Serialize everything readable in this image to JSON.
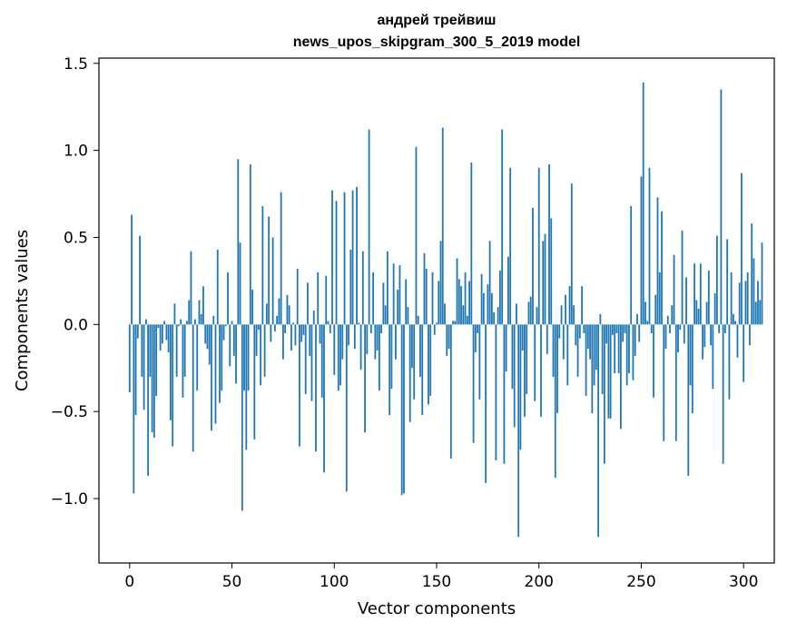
{
  "chart_data": {
    "type": "bar",
    "title": "андрей трейвиш",
    "subtitle": "news_upos_skipgram_300_5_2019 model",
    "xlabel": "Vector components",
    "ylabel": "Components values",
    "xlim": [
      -15,
      315
    ],
    "ylim": [
      -1.37,
      1.53
    ],
    "x_ticks": [
      0,
      50,
      100,
      150,
      200,
      250,
      300
    ],
    "x_tick_labels": [
      "0",
      "50",
      "100",
      "150",
      "200",
      "250",
      "300"
    ],
    "y_ticks": [
      -1.0,
      -0.5,
      0.0,
      0.5,
      1.0,
      1.5
    ],
    "y_tick_labels": [
      "−1.0",
      "−0.5",
      "0.0",
      "0.5",
      "1.0",
      "1.5"
    ],
    "bar_color": "#1f77b4",
    "grid": false,
    "x": "0..299",
    "values": [
      -0.39,
      0.63,
      -0.97,
      -0.52,
      -0.08,
      0.51,
      -0.3,
      -0.49,
      0.03,
      -0.87,
      -0.3,
      -0.62,
      -0.65,
      -0.41,
      -0.02,
      -0.15,
      -0.11,
      0.02,
      -0.09,
      -0.16,
      -0.55,
      -0.7,
      0.12,
      -0.3,
      -0.01,
      0.03,
      -0.42,
      -0.3,
      0.02,
      0.14,
      0.42,
      -0.73,
      0.03,
      -0.38,
      0.14,
      0.06,
      0.22,
      -0.11,
      -0.14,
      -0.23,
      -0.61,
      0.05,
      -0.57,
      0.43,
      -0.45,
      -0.38,
      -0.09,
      -0.01,
      0.3,
      -0.24,
      0.02,
      -0.18,
      -0.34,
      0.95,
      0.47,
      -1.07,
      -0.38,
      -0.72,
      -0.38,
      0.92,
      0.2,
      -0.66,
      -0.18,
      -0.03,
      -0.35,
      0.68,
      -0.3,
      0.12,
      0.62,
      -0.1,
      0.5,
      -0.04,
      0.05,
      0.15,
      0.76,
      -0.2,
      -0.05,
      0.17,
      0.11,
      -0.15,
      0.01,
      -0.12,
      0.32,
      -0.7,
      -0.1,
      -0.06,
      -0.4,
      0.24,
      -0.18,
      -0.44,
      0.08,
      -0.73,
      0.3,
      -0.11,
      -0.42,
      -0.85,
      0.28,
      0.02,
      -0.05,
      0.77,
      -0.29,
      0.71,
      -0.38,
      -0.35,
      -0.2,
      0.76,
      -0.96,
      -0.12,
      0.43,
      0.77,
      -0.14,
      0.79,
      0.01,
      -0.26,
      0.42,
      -0.62,
      -0.17,
      1.12,
      -0.05,
      0.3,
      -0.2,
      -0.15,
      -0.38,
      -0.05,
      0.24,
      0.11,
      0.42,
      -0.52,
      -0.37,
      0.35,
      -0.2,
      0.2,
      0.34,
      -0.98,
      -0.97,
      0.26,
      0.1,
      -0.56,
      -0.25,
      -0.43,
      1.02,
      0.05,
      -0.3,
      -0.52,
      0.41,
      0.32,
      -0.46,
      -0.41,
      0.3,
      -0.06,
      0.01,
      0.25,
      0.48,
      1.13,
      0.12,
      -0.18,
      -0.14,
      -0.77,
      0.02,
      0.02,
      0.38,
      0.26,
      0.22,
      0.11,
      0.3,
      0.05,
      0.25,
      0.93,
      -0.68,
      -0.16,
      -0.05,
      -0.43,
      0.29,
      0.18,
      -0.91,
      0.23,
      0.48,
      0.18,
      0.07,
      -0.78,
      0.1,
      0.31,
      1.12,
      -0.8,
      -0.27,
      0.39,
      0.9,
      -0.37,
      -0.59,
      0.12,
      -1.22,
      -0.72,
      -0.15,
      -0.53,
      -0.4,
      0.13,
      0.16,
      0.67,
      -0.44,
      0.1,
      0.9,
      -0.53,
      0.48,
      0.52,
      -0.17,
      0.92,
      0.61,
      -0.3,
      -0.88,
      -0.51,
      -0.08,
      0.11,
      -0.2,
      0.17,
      -0.35,
      0.22,
      0.81,
      0.11,
      -0.12,
      -0.3,
      -0.08,
      0.22,
      -0.05,
      -0.41,
      -0.14,
      -0.2,
      -0.51,
      -0.35,
      -0.26,
      -1.22,
      0.06,
      -0.4,
      -0.8,
      -0.11,
      -0.54,
      -0.54,
      -0.06,
      -0.28,
      -0.05,
      -0.28,
      -0.6,
      -0.1,
      -0.05,
      -0.35,
      -0.28,
      0.68,
      -0.32,
      -0.18,
      0.06,
      -0.1,
      0.85,
      1.39,
      0.13,
      0.02,
      0.9,
      -0.05,
      -0.42,
      0.17,
      0.73,
      0.3,
      0.65,
      -0.67,
      -0.14,
      0.05,
      -0.05,
      0.11,
      0.4,
      -0.67,
      -0.16,
      -0.03,
      0.54,
      -0.11,
      0.27,
      -0.87,
      -0.35,
      -0.51,
      0.35,
      0.14,
      0.09,
      0.35,
      -0.2,
      -0.13,
      0.13,
      0.31,
      -0.12,
      -0.37,
      0.18,
      0.51,
      -0.05,
      1.35,
      -0.8,
      -0.05,
      0.49,
      -0.43,
      0.3,
      0.06,
      0.02,
      -0.19,
      0.24,
      0.87,
      -0.33,
      0.25,
      0.3,
      -0.12,
      0.58,
      0.38,
      0.13,
      0.25,
      0.14,
      0.47
    ]
  }
}
